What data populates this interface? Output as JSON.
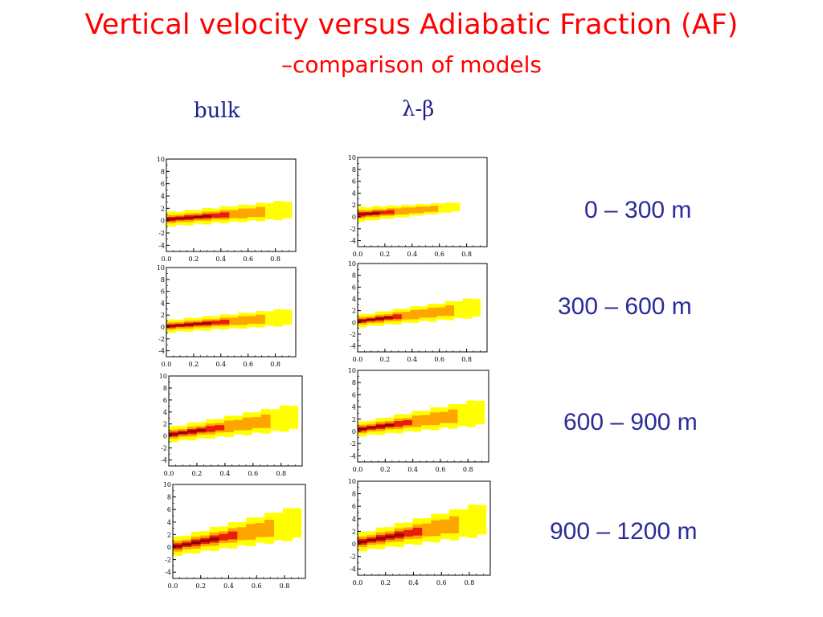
{
  "slide": {
    "title_line1": "Vertical velocity versus Adiabatic Fraction (AF)",
    "title_line2": "–comparison of models",
    "column_labels": [
      "bulk",
      "λ-β"
    ],
    "row_labels": [
      "0 – 300 m",
      "300 – 600 m",
      "600 – 900 m",
      "900 – 1200 m"
    ]
  },
  "colors": {
    "title": "#ff0000",
    "labels": "#2b2b9a",
    "density_low": "#ffff00",
    "density_mid": "#ffa500",
    "density_high": "#e81e0a",
    "density_core": "#8b0000"
  },
  "chart_data": [
    {
      "type": "heatmap",
      "model": "bulk",
      "layer": "0 – 300 m",
      "x_ticks": [
        "0.0",
        "0.2",
        "0.4",
        "0.6",
        "0.8"
      ],
      "y_ticks": [
        "10",
        "8",
        "6",
        "4",
        "2",
        "0",
        "-2",
        "-4"
      ],
      "xlim": [
        0,
        0.95
      ],
      "ylim": [
        -5,
        10
      ],
      "band": {
        "x_start": 0.0,
        "x_end": 0.92,
        "y_start": 0.2,
        "y_end": 1.8,
        "halfwidth_start": 1.2,
        "halfwidth_end": 1.6,
        "core_x_end": 0.45
      }
    },
    {
      "type": "heatmap",
      "model": "λ-β",
      "layer": "0 – 300 m",
      "x_ticks": [
        "0.0",
        "0.2",
        "0.4",
        "0.6",
        "0.8"
      ],
      "y_ticks": [
        "10",
        "8",
        "6",
        "4",
        "2",
        "0",
        "-2",
        "-4"
      ],
      "xlim": [
        0,
        0.95
      ],
      "ylim": [
        -5,
        10
      ],
      "band": {
        "x_start": 0.0,
        "x_end": 0.75,
        "y_start": 0.4,
        "y_end": 1.7,
        "halfwidth_start": 1.3,
        "halfwidth_end": 0.8,
        "core_x_end": 0.25
      }
    },
    {
      "type": "heatmap",
      "model": "bulk",
      "layer": "300 – 600 m",
      "x_ticks": [
        "0.0",
        "0.2",
        "0.4",
        "0.6",
        "0.8"
      ],
      "y_ticks": [
        "10",
        "8",
        "6",
        "4",
        "2",
        "0",
        "-2",
        "-4"
      ],
      "xlim": [
        0,
        0.95
      ],
      "ylim": [
        -5,
        10
      ],
      "band": {
        "x_start": 0.0,
        "x_end": 0.92,
        "y_start": 0.1,
        "y_end": 1.7,
        "halfwidth_start": 1.1,
        "halfwidth_end": 1.5,
        "core_x_end": 0.45
      }
    },
    {
      "type": "heatmap",
      "model": "λ-β",
      "layer": "300 – 600 m",
      "x_ticks": [
        "0.0",
        "0.2",
        "0.4",
        "0.6",
        "0.8"
      ],
      "y_ticks": [
        "10",
        "8",
        "6",
        "4",
        "2",
        "0",
        "-2",
        "-4"
      ],
      "xlim": [
        0,
        0.95
      ],
      "ylim": [
        -5,
        10
      ],
      "band": {
        "x_start": 0.0,
        "x_end": 0.9,
        "y_start": 0.2,
        "y_end": 2.6,
        "halfwidth_start": 1.1,
        "halfwidth_end": 1.8,
        "core_x_end": 0.35
      }
    },
    {
      "type": "heatmap",
      "model": "bulk",
      "layer": "600 – 900 m",
      "x_ticks": [
        "0.0",
        "0.2",
        "0.4",
        "0.6",
        "0.8"
      ],
      "y_ticks": [
        "10",
        "8",
        "6",
        "4",
        "2",
        "0",
        "-2",
        "-4"
      ],
      "xlim": [
        0,
        0.95
      ],
      "ylim": [
        -5,
        10
      ],
      "band": {
        "x_start": 0.0,
        "x_end": 0.92,
        "y_start": 0.2,
        "y_end": 3.2,
        "halfwidth_start": 1.3,
        "halfwidth_end": 2.3,
        "core_x_end": 0.4
      }
    },
    {
      "type": "heatmap",
      "model": "λ-β",
      "layer": "600 – 900 m",
      "x_ticks": [
        "0.0",
        "0.2",
        "0.4",
        "0.6",
        "0.8"
      ],
      "y_ticks": [
        "10",
        "8",
        "6",
        "4",
        "2",
        "0",
        "-2",
        "-4"
      ],
      "xlim": [
        0,
        0.95
      ],
      "ylim": [
        -5,
        10
      ],
      "band": {
        "x_start": 0.0,
        "x_end": 0.92,
        "y_start": 0.3,
        "y_end": 3.2,
        "halfwidth_start": 1.2,
        "halfwidth_end": 2.3,
        "core_x_end": 0.4
      }
    },
    {
      "type": "heatmap",
      "model": "bulk",
      "layer": "900 – 1200 m",
      "x_ticks": [
        "0.0",
        "0.2",
        "0.4",
        "0.6",
        "0.8"
      ],
      "y_ticks": [
        "10",
        "8",
        "6",
        "4",
        "2",
        "0",
        "-2",
        "-4"
      ],
      "xlim": [
        0,
        0.95
      ],
      "ylim": [
        -5,
        10
      ],
      "band": {
        "x_start": 0.0,
        "x_end": 0.92,
        "y_start": 0.0,
        "y_end": 4.0,
        "halfwidth_start": 1.5,
        "halfwidth_end": 2.8,
        "core_x_end": 0.45
      }
    },
    {
      "type": "heatmap",
      "model": "λ-β",
      "layer": "900 – 1200 m",
      "x_ticks": [
        "0.0",
        "0.2",
        "0.4",
        "0.6",
        "0.8"
      ],
      "y_ticks": [
        "10",
        "8",
        "6",
        "4",
        "2",
        "0",
        "-2",
        "-4"
      ],
      "xlim": [
        0,
        0.95
      ],
      "ylim": [
        -5,
        10
      ],
      "band": {
        "x_start": 0.0,
        "x_end": 0.92,
        "y_start": 0.2,
        "y_end": 4.0,
        "halfwidth_start": 1.5,
        "halfwidth_end": 2.8,
        "core_x_end": 0.45
      }
    }
  ]
}
